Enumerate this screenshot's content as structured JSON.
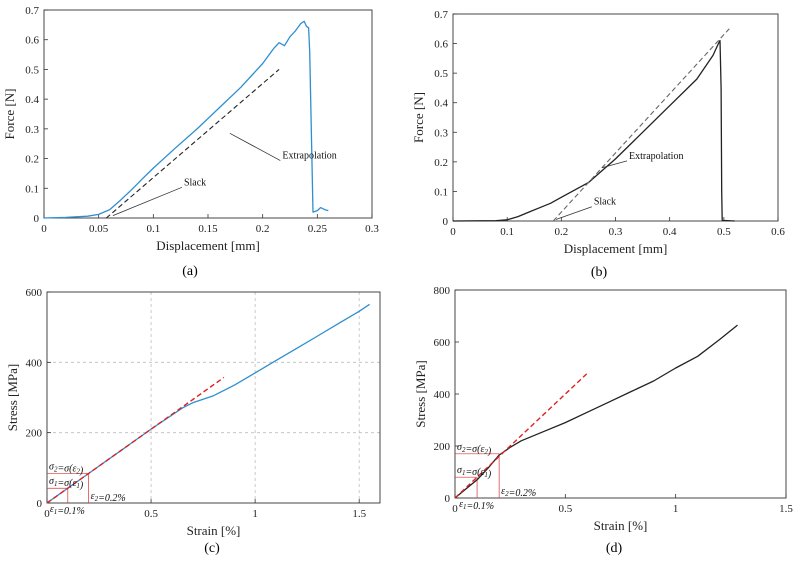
{
  "chart_data": [
    {
      "id": "a",
      "type": "line",
      "caption": "(a)",
      "xlabel": "Displacement [mm]",
      "ylabel": "Force [N]",
      "xlim": [
        0,
        0.3
      ],
      "ylim": [
        0,
        0.7
      ],
      "xticks": [
        0,
        0.05,
        0.1,
        0.15,
        0.2,
        0.25,
        0.3
      ],
      "yticks": [
        0,
        0.1,
        0.2,
        0.3,
        0.4,
        0.5,
        0.6,
        0.7
      ],
      "grid": false,
      "color": "#2e8fd0",
      "series": [
        {
          "values_xy": [
            [
              0,
              0
            ],
            [
              0.02,
              0.002
            ],
            [
              0.04,
              0.006
            ],
            [
              0.05,
              0.012
            ],
            [
              0.06,
              0.028
            ],
            [
              0.07,
              0.06
            ],
            [
              0.08,
              0.095
            ],
            [
              0.09,
              0.132
            ],
            [
              0.1,
              0.168
            ],
            [
              0.12,
              0.235
            ],
            [
              0.14,
              0.3
            ],
            [
              0.16,
              0.37
            ],
            [
              0.18,
              0.44
            ],
            [
              0.2,
              0.52
            ],
            [
              0.21,
              0.57
            ],
            [
              0.215,
              0.59
            ],
            [
              0.22,
              0.58
            ],
            [
              0.225,
              0.61
            ],
            [
              0.23,
              0.63
            ],
            [
              0.235,
              0.655
            ],
            [
              0.238,
              0.662
            ],
            [
              0.24,
              0.645
            ],
            [
              0.242,
              0.64
            ],
            [
              0.243,
              0.56
            ],
            [
              0.245,
              0.2
            ],
            [
              0.246,
              0.02
            ],
            [
              0.25,
              0.025
            ],
            [
              0.253,
              0.035
            ],
            [
              0.257,
              0.028
            ],
            [
              0.26,
              0.025
            ]
          ]
        }
      ],
      "extrapolation_line": [
        [
          0.057,
          0
        ],
        [
          0.215,
          0.5
        ]
      ],
      "annotations": [
        {
          "text": "Extrapolation",
          "x": 0.17,
          "y": 0.285,
          "tx": 0.218,
          "ty": 0.2
        },
        {
          "text": "Slack",
          "x": 0.063,
          "y": 0.008,
          "tx": 0.128,
          "ty": 0.11
        }
      ]
    },
    {
      "id": "b",
      "type": "line",
      "caption": "(b)",
      "xlabel": "Displacement [mm]",
      "ylabel": "Force [N]",
      "xlim": [
        0,
        0.6
      ],
      "ylim": [
        0,
        0.7
      ],
      "xticks": [
        0,
        0.1,
        0.2,
        0.3,
        0.4,
        0.5,
        0.6
      ],
      "yticks": [
        0,
        0.1,
        0.2,
        0.3,
        0.4,
        0.5,
        0.6,
        0.7
      ],
      "grid": false,
      "color": "#222222",
      "series": [
        {
          "values_xy": [
            [
              0,
              0
            ],
            [
              0.08,
              0.001
            ],
            [
              0.1,
              0.004
            ],
            [
              0.12,
              0.015
            ],
            [
              0.14,
              0.03
            ],
            [
              0.16,
              0.045
            ],
            [
              0.18,
              0.06
            ],
            [
              0.2,
              0.08
            ],
            [
              0.25,
              0.13
            ],
            [
              0.3,
              0.21
            ],
            [
              0.35,
              0.3
            ],
            [
              0.4,
              0.39
            ],
            [
              0.45,
              0.48
            ],
            [
              0.48,
              0.56
            ],
            [
              0.49,
              0.6
            ],
            [
              0.493,
              0.61
            ],
            [
              0.495,
              0.45
            ],
            [
              0.496,
              0.1
            ],
            [
              0.497,
              0.002
            ],
            [
              0.52,
              0
            ]
          ]
        }
      ],
      "extrapolation_line": [
        [
          0.185,
          0
        ],
        [
          0.51,
          0.65
        ]
      ],
      "annotations": [
        {
          "text": "Extrapolation",
          "x": 0.275,
          "y": 0.18,
          "tx": 0.325,
          "ty": 0.21
        },
        {
          "text": "Slack",
          "x": 0.19,
          "y": 0.005,
          "tx": 0.26,
          "ty": 0.055
        }
      ]
    },
    {
      "id": "c",
      "type": "line",
      "caption": "(c)",
      "xlabel": "Strain [%]",
      "ylabel": "Stress [MPa]",
      "xlim": [
        0,
        1.6
      ],
      "ylim": [
        0,
        600
      ],
      "xticks": [
        0,
        0.5,
        1,
        1.5
      ],
      "yticks": [
        0,
        200,
        400,
        600
      ],
      "grid": true,
      "color": "#2e8fd0",
      "series": [
        {
          "values_xy": [
            [
              0,
              0
            ],
            [
              0.1,
              42
            ],
            [
              0.2,
              84
            ],
            [
              0.3,
              126
            ],
            [
              0.4,
              168
            ],
            [
              0.5,
              210
            ],
            [
              0.6,
              250
            ],
            [
              0.65,
              270
            ],
            [
              0.7,
              285
            ],
            [
              0.8,
              305
            ],
            [
              0.9,
              335
            ],
            [
              1.0,
              370
            ],
            [
              1.1,
              405
            ],
            [
              1.2,
              440
            ],
            [
              1.3,
              475
            ],
            [
              1.4,
              510
            ],
            [
              1.5,
              545
            ],
            [
              1.55,
              565
            ]
          ]
        }
      ],
      "extrapolation_line": [
        [
          0,
          0
        ],
        [
          0.85,
          357
        ]
      ],
      "markers": {
        "e1": 0.1,
        "s1": 42,
        "e2": 0.2,
        "s2": 84
      },
      "labels": {
        "s2": "σ2=σ(ε2)",
        "s1": "σ1=σ(ε1)",
        "e2": "ε2=0.2%",
        "e1": "ε1=0.1%"
      }
    },
    {
      "id": "d",
      "type": "line",
      "caption": "(d)",
      "xlabel": "Strain [%]",
      "ylabel": "Stress [MPa]",
      "xlim": [
        0,
        1.5
      ],
      "ylim": [
        0,
        800
      ],
      "xticks": [
        0,
        0.5,
        1,
        1.5
      ],
      "yticks": [
        0,
        200,
        400,
        600,
        800
      ],
      "grid": false,
      "color": "#222222",
      "series": [
        {
          "values_xy": [
            [
              0,
              0
            ],
            [
              0.05,
              35
            ],
            [
              0.1,
              70
            ],
            [
              0.15,
              115
            ],
            [
              0.2,
              165
            ],
            [
              0.25,
              195
            ],
            [
              0.3,
              220
            ],
            [
              0.4,
              255
            ],
            [
              0.5,
              290
            ],
            [
              0.6,
              330
            ],
            [
              0.7,
              370
            ],
            [
              0.8,
              410
            ],
            [
              0.9,
              450
            ],
            [
              1.0,
              500
            ],
            [
              1.1,
              545
            ],
            [
              1.2,
              610
            ],
            [
              1.28,
              665
            ]
          ]
        }
      ],
      "extrapolation_line": [
        [
          0,
          0
        ],
        [
          0.6,
          480
        ]
      ],
      "markers": {
        "e1": 0.1,
        "s1": 80,
        "e2": 0.2,
        "s2": 170
      },
      "labels": {
        "s2": "σ2=σ(ε2)",
        "s1": "σ1=σ(ε1)",
        "e2": "ε2=0.2%",
        "e1": "ε1=0.1%"
      }
    }
  ]
}
